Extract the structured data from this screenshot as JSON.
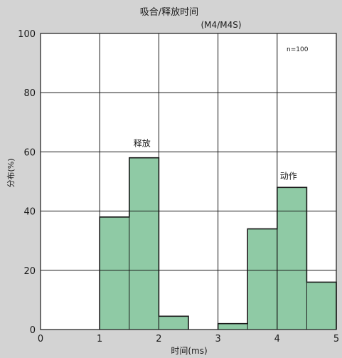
{
  "chart_data": {
    "type": "bar",
    "title": "吸合/释放时间",
    "subtitle": "(M4/M4S)",
    "xlabel": "时间(ms)",
    "ylabel": "分布(%)",
    "xlim": [
      0,
      5
    ],
    "ylim": [
      0,
      100
    ],
    "x_ticks": [
      "0",
      "1",
      "2",
      "3",
      "4",
      "5"
    ],
    "y_ticks": [
      "0",
      "20",
      "40",
      "60",
      "80",
      "100"
    ],
    "grid": true,
    "sample_note": "n=100",
    "bin_width": 0.5,
    "series": [
      {
        "name": "释放",
        "bins": [
          {
            "x0": 1.0,
            "x1": 1.5,
            "value": 38
          },
          {
            "x0": 1.5,
            "x1": 2.0,
            "value": 58
          },
          {
            "x0": 2.0,
            "x1": 2.5,
            "value": 4.5
          }
        ]
      },
      {
        "name": "动作",
        "bins": [
          {
            "x0": 3.0,
            "x1": 3.5,
            "value": 2
          },
          {
            "x0": 3.5,
            "x1": 4.0,
            "value": 34
          },
          {
            "x0": 4.0,
            "x1": 4.5,
            "value": 48
          },
          {
            "x0": 4.5,
            "x1": 5.0,
            "value": 16
          }
        ]
      }
    ],
    "bar_color": "#8fcaa5"
  }
}
